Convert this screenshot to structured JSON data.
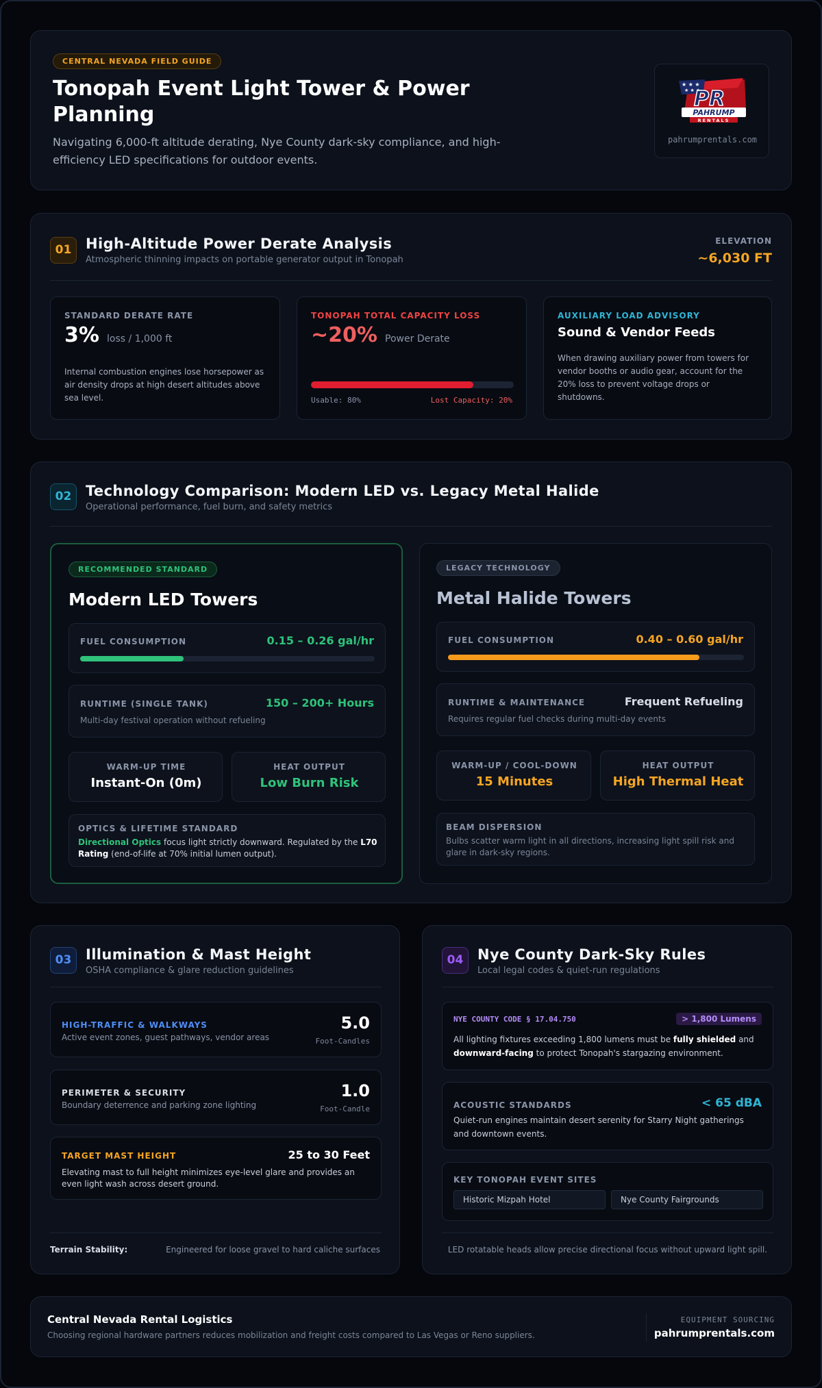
{
  "header": {
    "badge": "CENTRAL NEVADA FIELD GUIDE",
    "title_line1": "Tonopah Event Light Tower & Power",
    "title_line2": "Planning",
    "subtitle_line1": "Navigating 6,000-ft altitude derating, Nye County dark-sky compliance, and high-",
    "subtitle_line2": "efficiency LED specifications for outdoor events.",
    "logo": {
      "text_main": "PR",
      "text_name": "PAHRUMP",
      "text_sub": "RENTALS",
      "url": "pahrumprentals.com"
    }
  },
  "section1": {
    "number": "01",
    "title": "High-Altitude Power Derate Analysis",
    "subtitle": "Atmospheric thinning impacts on portable generator output in Tonopah",
    "elevation_label": "ELEVATION",
    "elevation_value": "~6,030 FT",
    "card1": {
      "label": "STANDARD DERATE RATE",
      "value": "3%",
      "unit": "loss / 1,000 ft",
      "desc_line1": "Internal combustion engines lose horsepower as",
      "desc_line2": "air density drops at high desert altitudes above",
      "desc_line3": "sea level."
    },
    "card2": {
      "label": "TONOPAH TOTAL CAPACITY LOSS",
      "value": "~20%",
      "unit": "Power Derate",
      "usable": "Usable: 80%",
      "lost": "Lost Capacity: 20%",
      "usable_fraction": 0.8
    },
    "card3": {
      "label": "AUXILIARY LOAD ADVISORY",
      "title": "Sound & Vendor Feeds",
      "desc_line1": "When drawing auxiliary power from towers for",
      "desc_line2": "vendor booths or audio gear, account for the",
      "desc_line3": "20% loss to prevent voltage drops or",
      "desc_line4": "shutdowns."
    }
  },
  "section2": {
    "number": "02",
    "title": "Technology Comparison: Modern LED vs. Legacy Metal Halide",
    "subtitle": "Operational performance, fuel burn, and safety metrics",
    "led": {
      "badge": "RECOMMENDED STANDARD",
      "title": "Modern LED Towers",
      "fuel_label": "FUEL CONSUMPTION",
      "fuel_value": "0.15 – 0.26 gal/hr",
      "fuel_fraction": 0.35,
      "runtime_label": "RUNTIME (SINGLE TANK)",
      "runtime_value": "150 – 200+ Hours",
      "runtime_desc": "Multi-day festival operation without refueling",
      "warmup_label": "WARM-UP TIME",
      "warmup_value": "Instant-On (0m)",
      "heat_label": "HEAT OUTPUT",
      "heat_value": "Low Burn Risk",
      "optics_label": "OPTICS & LIFETIME STANDARD",
      "optics_hl": "Directional Optics",
      "optics_t1": " focus light strictly downward. Regulated by the ",
      "optics_bold": "L70",
      "optics_bold2": "Rating",
      "optics_t2": " (end-of-life at 70% initial lumen output)."
    },
    "mh": {
      "badge": "LEGACY TECHNOLOGY",
      "title": "Metal Halide Towers",
      "fuel_label": "FUEL CONSUMPTION",
      "fuel_value": "0.40 – 0.60 gal/hr",
      "fuel_fraction": 0.85,
      "runtime_label": "RUNTIME & MAINTENANCE",
      "runtime_value": "Frequent Refueling",
      "runtime_desc": "Requires regular fuel checks during multi-day events",
      "warmup_label": "WARM-UP / COOL-DOWN",
      "warmup_value": "15 Minutes",
      "heat_label": "HEAT OUTPUT",
      "heat_value": "High Thermal Heat",
      "beam_label": "BEAM DISPERSION",
      "beam_line1": "Bulbs scatter warm light in all directions, increasing light spill risk and",
      "beam_line2": "glare in dark-sky regions."
    }
  },
  "section3": {
    "number": "03",
    "title": "Illumination & Mast Height",
    "subtitle": "OSHA compliance & glare reduction guidelines",
    "row1": {
      "label": "HIGH-TRAFFIC & WALKWAYS",
      "desc": "Active event zones, guest pathways, vendor areas",
      "value": "5.0",
      "unit": "Foot-Candles"
    },
    "row2": {
      "label": "PERIMETER & SECURITY",
      "desc": "Boundary deterrence and parking zone lighting",
      "value": "1.0",
      "unit": "Foot-Candle"
    },
    "row3": {
      "label": "TARGET MAST HEIGHT",
      "value": "25 to 30 Feet",
      "desc_line1": "Elevating mast to full height minimizes eye-level glare and provides an",
      "desc_line2": "even light wash across desert ground."
    },
    "footer_label": "Terrain Stability:",
    "footer_text": "Engineered for loose gravel to hard caliche surfaces"
  },
  "section4": {
    "number": "04",
    "title": "Nye County Dark-Sky Rules",
    "subtitle": "Local legal codes & quiet-run regulations",
    "code": {
      "label": "NYE COUNTY CODE § 17.04.750",
      "badge": "> 1,800 Lumens",
      "t1": "All lighting fixtures exceeding 1,800 lumens must be ",
      "b1": "fully shielded",
      "t2": " and",
      "b2": "downward-facing",
      "t3": " to protect Tonopah's stargazing environment."
    },
    "acoustic": {
      "label": "ACOUSTIC STANDARDS",
      "value": "< 65 dBA",
      "desc_line1": "Quiet-run engines maintain desert serenity for Starry Night gatherings",
      "desc_line2": "and downtown events."
    },
    "sites": {
      "label": "KEY TONOPAH EVENT SITES",
      "site1": "Historic Mizpah Hotel",
      "site2": "Nye County Fairgrounds"
    },
    "footer_text": "LED rotatable heads allow precise directional focus without upward light spill."
  },
  "footer": {
    "title": "Central Nevada Rental Logistics",
    "desc": "Choosing regional hardware partners reduces mobilization and freight costs compared to Las Vegas or Reno suppliers.",
    "sourcing_label": "EQUIPMENT SOURCING",
    "url": "pahrumprentals.com"
  },
  "colors": {
    "amber": "#f5a524",
    "red": "#ef4444",
    "cyan": "#2fb4d4",
    "green": "#2fc27a",
    "blue": "#4f8ef7",
    "purple": "#9b5cf6"
  }
}
